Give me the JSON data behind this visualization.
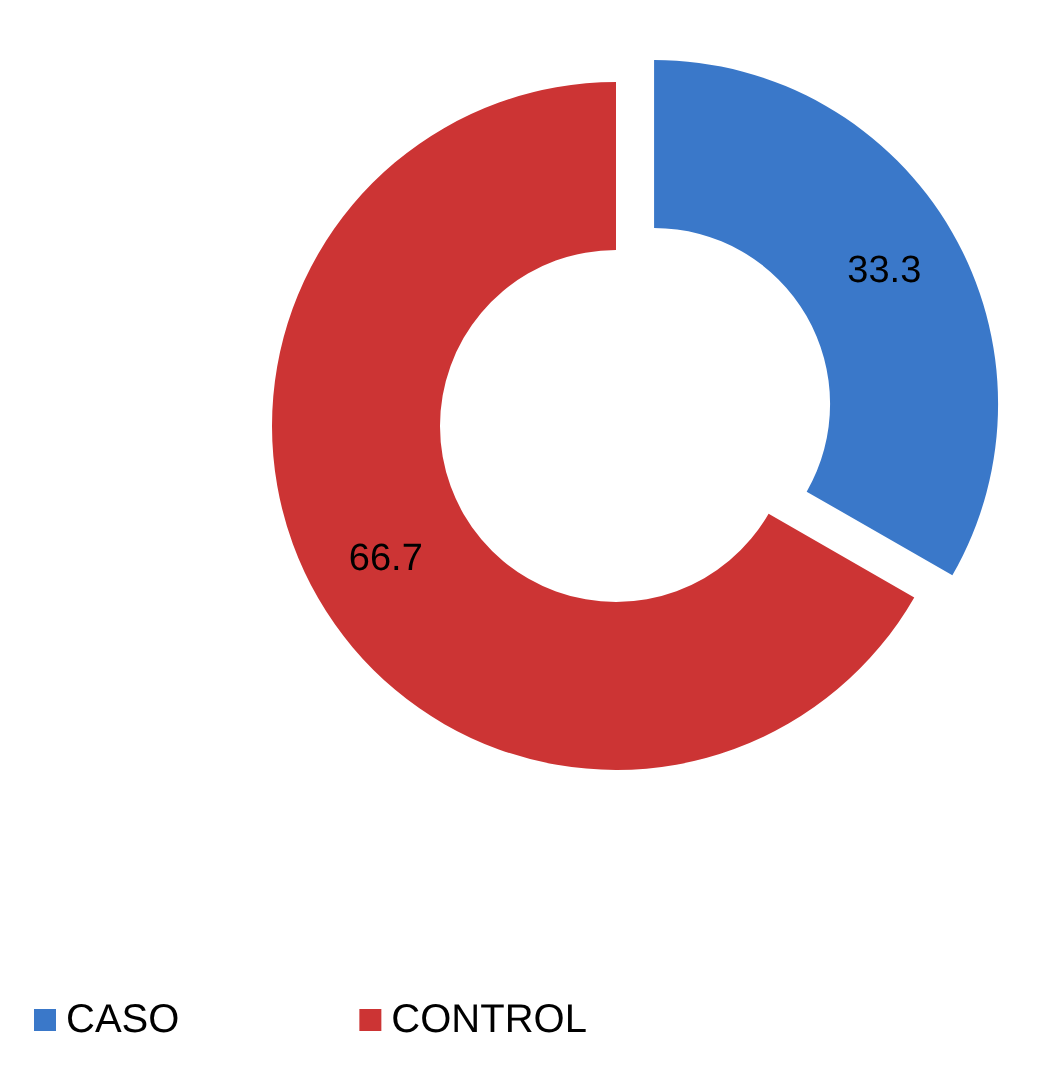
{
  "chart_data": {
    "type": "donut",
    "categories": [
      "CASO",
      "CONTROL"
    ],
    "values": [
      33.3,
      66.7
    ],
    "colors": [
      "#3a78c9",
      "#cc3434"
    ],
    "data_labels": true,
    "legend": "bottom left"
  }
}
